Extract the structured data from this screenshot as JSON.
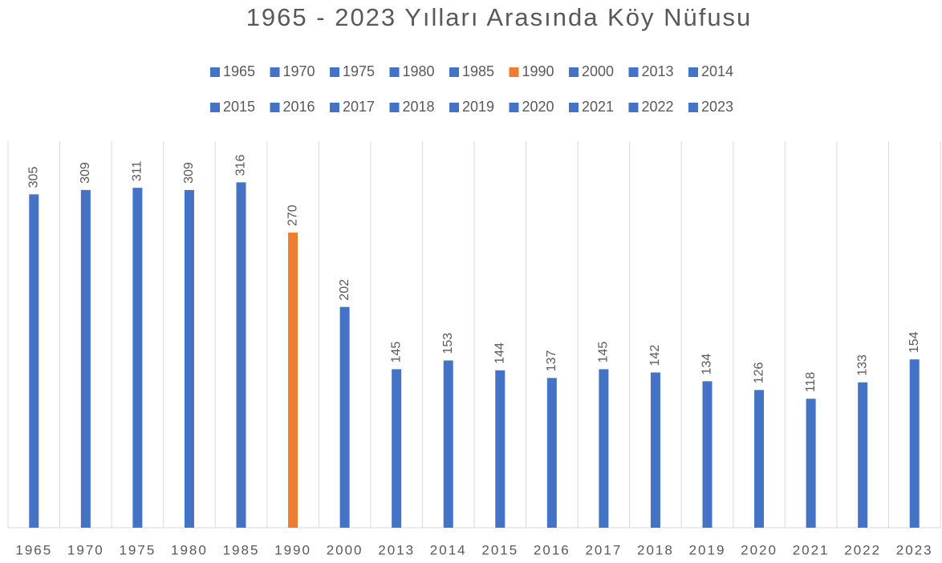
{
  "chart_data": {
    "type": "bar",
    "title": "1965 - 2023 Yılları Arasında Köy Nüfusu",
    "categories": [
      "1965",
      "1970",
      "1975",
      "1980",
      "1985",
      "1990",
      "2000",
      "2013",
      "2014",
      "2015",
      "2016",
      "2017",
      "2018",
      "2019",
      "2020",
      "2021",
      "2022",
      "2023"
    ],
    "values": [
      305,
      309,
      311,
      309,
      316,
      270,
      202,
      145,
      153,
      144,
      137,
      145,
      142,
      134,
      126,
      118,
      133,
      154
    ],
    "colors": [
      "#4472c4",
      "#4472c4",
      "#4472c4",
      "#4472c4",
      "#4472c4",
      "#ed7d31",
      "#4472c4",
      "#4472c4",
      "#4472c4",
      "#4472c4",
      "#4472c4",
      "#4472c4",
      "#4472c4",
      "#4472c4",
      "#4472c4",
      "#4472c4",
      "#4472c4",
      "#4472c4"
    ],
    "ylim": [
      0,
      350
    ],
    "grid": true,
    "legend": "top"
  }
}
